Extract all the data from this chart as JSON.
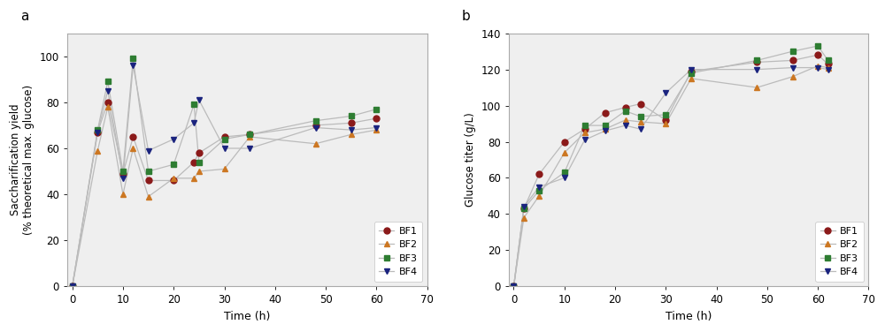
{
  "panel_a": {
    "title": "a",
    "xlabel": "Time (h)",
    "ylabel": "Saccharification yield\n(% theoretical max. glucose)",
    "xlim": [
      -1,
      68
    ],
    "ylim": [
      0,
      110
    ],
    "xticks": [
      0,
      10,
      20,
      30,
      40,
      50,
      60,
      70
    ],
    "yticks": [
      0,
      20,
      40,
      60,
      80,
      100
    ],
    "series": {
      "BF1": {
        "color": "#8B1A1A",
        "marker": "o",
        "x": [
          0,
          5,
          7,
          10,
          12,
          15,
          20,
          24,
          25,
          30,
          35,
          48,
          55,
          60
        ],
        "y": [
          0,
          67,
          80,
          49,
          65,
          46,
          46,
          54,
          58,
          65,
          66,
          70,
          71,
          73
        ]
      },
      "BF2": {
        "color": "#CC7722",
        "marker": "^",
        "x": [
          0,
          5,
          7,
          10,
          12,
          15,
          20,
          24,
          25,
          30,
          35,
          48,
          55,
          60
        ],
        "y": [
          0,
          59,
          78,
          40,
          60,
          39,
          47,
          47,
          50,
          51,
          65,
          62,
          66,
          68
        ]
      },
      "BF3": {
        "color": "#2E7D32",
        "marker": "s",
        "x": [
          0,
          5,
          7,
          10,
          12,
          15,
          20,
          24,
          25,
          30,
          35,
          48,
          55,
          60
        ],
        "y": [
          0,
          68,
          89,
          50,
          99,
          50,
          53,
          79,
          54,
          64,
          66,
          72,
          74,
          77
        ]
      },
      "BF4": {
        "color": "#1A237E",
        "marker": "v",
        "x": [
          0,
          5,
          7,
          10,
          12,
          15,
          20,
          24,
          25,
          30,
          35,
          48,
          55,
          60
        ],
        "y": [
          0,
          67,
          85,
          47,
          96,
          59,
          64,
          71,
          81,
          60,
          60,
          69,
          68,
          69
        ]
      }
    }
  },
  "panel_b": {
    "title": "b",
    "xlabel": "Time (h)",
    "ylabel": "Glucose titer (g/L)",
    "xlim": [
      -1,
      68
    ],
    "ylim": [
      0,
      140
    ],
    "xticks": [
      0,
      10,
      20,
      30,
      40,
      50,
      60,
      70
    ],
    "yticks": [
      0,
      20,
      40,
      60,
      80,
      100,
      120,
      140
    ],
    "series": {
      "BF1": {
        "color": "#8B1A1A",
        "marker": "o",
        "x": [
          0,
          2,
          5,
          10,
          14,
          18,
          22,
          25,
          30,
          35,
          48,
          55,
          60,
          62
        ],
        "y": [
          0,
          43,
          62,
          80,
          87,
          96,
          99,
          101,
          92,
          119,
          124,
          125,
          128,
          123
        ]
      },
      "BF2": {
        "color": "#CC7722",
        "marker": "^",
        "x": [
          0,
          2,
          5,
          10,
          14,
          18,
          22,
          25,
          30,
          35,
          48,
          55,
          60,
          62
        ],
        "y": [
          0,
          38,
          50,
          74,
          85,
          87,
          92,
          91,
          90,
          115,
          110,
          116,
          122,
          121
        ]
      },
      "BF3": {
        "color": "#2E7D32",
        "marker": "s",
        "x": [
          0,
          2,
          5,
          10,
          14,
          18,
          22,
          25,
          30,
          35,
          48,
          55,
          60,
          62
        ],
        "y": [
          0,
          43,
          53,
          63,
          89,
          89,
          97,
          94,
          95,
          118,
          125,
          130,
          133,
          125
        ]
      },
      "BF4": {
        "color": "#1A237E",
        "marker": "v",
        "x": [
          0,
          2,
          5,
          10,
          14,
          18,
          22,
          25,
          30,
          35,
          48,
          55,
          60,
          62
        ],
        "y": [
          0,
          44,
          55,
          60,
          81,
          86,
          89,
          87,
          107,
          120,
          120,
          121,
          121,
          120
        ]
      }
    }
  },
  "legend_labels": [
    "BF1",
    "BF2",
    "BF3",
    "BF4"
  ],
  "line_color": "#BBBBBB",
  "marker_size": 5,
  "line_width": 0.9,
  "bg_color": "#EFEFEF",
  "fig_bg": "#FFFFFF"
}
